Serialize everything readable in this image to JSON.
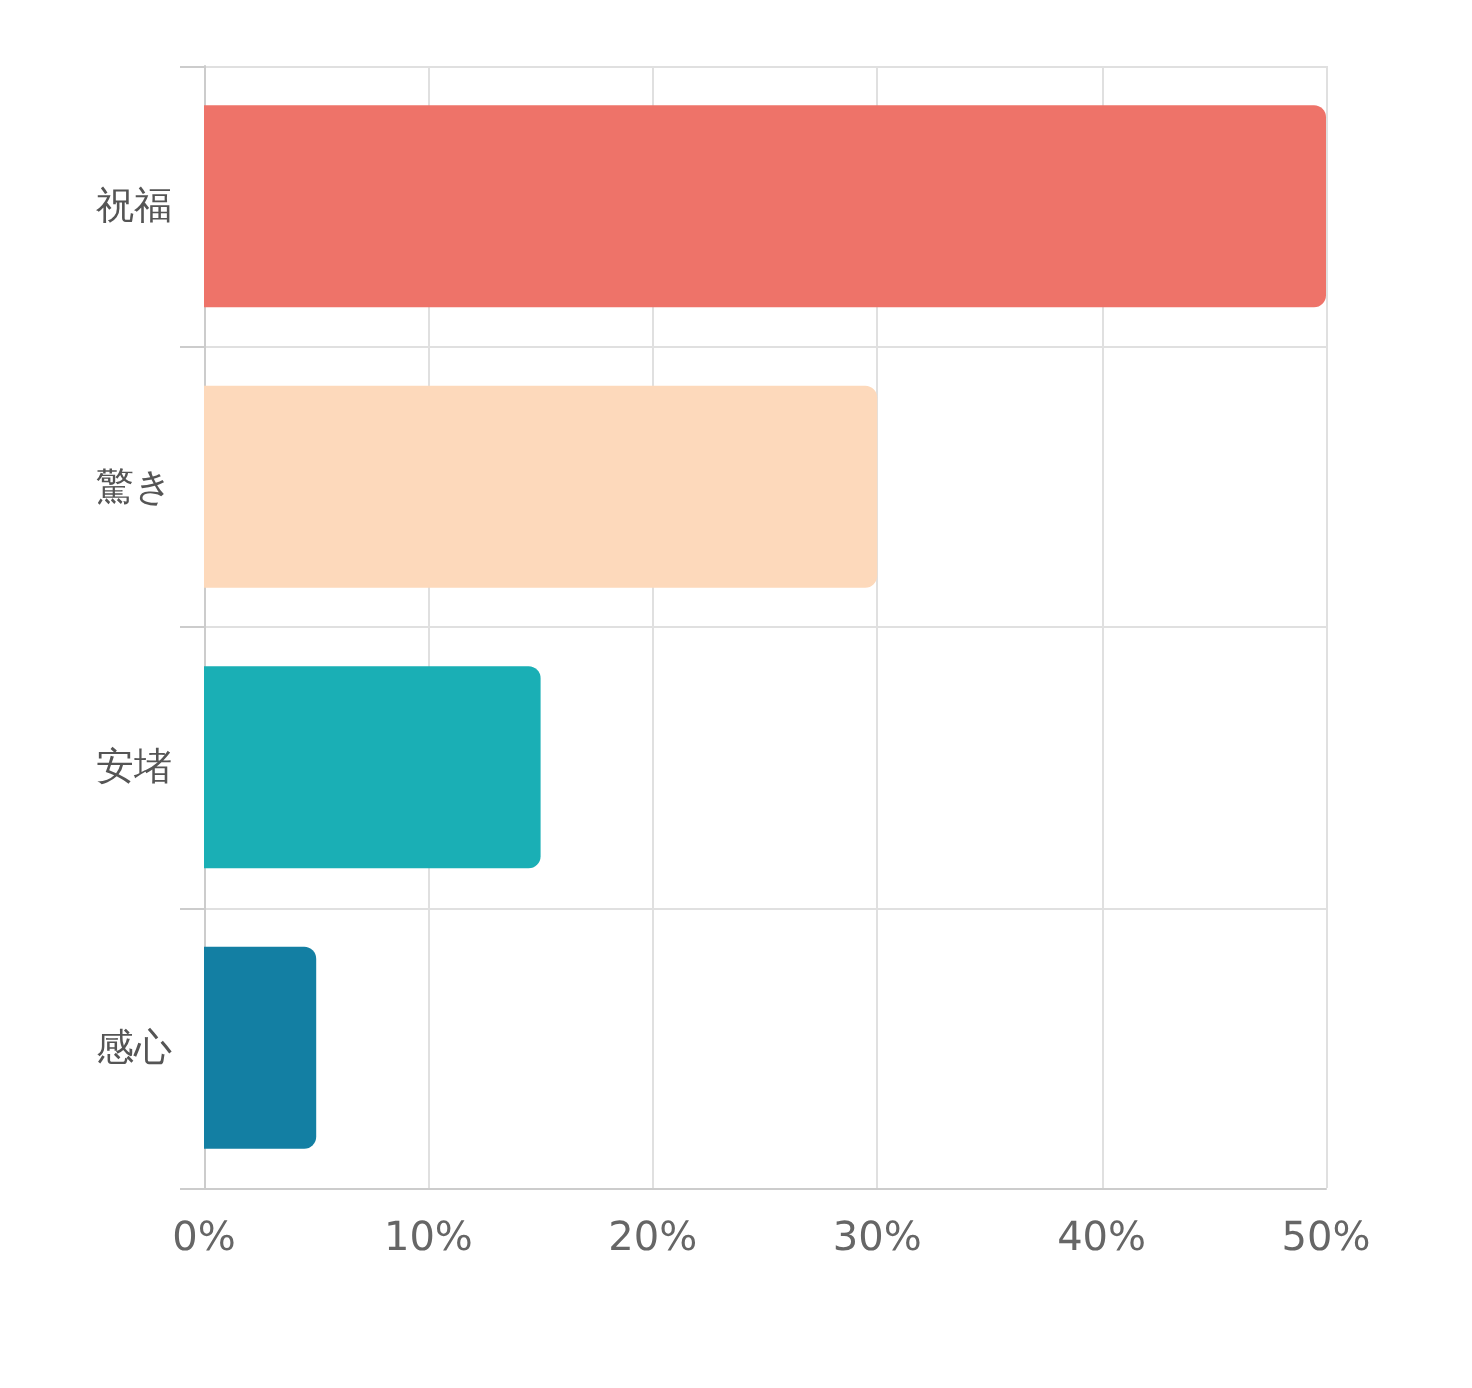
{
  "chart_data": {
    "type": "bar",
    "orientation": "horizontal",
    "categories": [
      "祝福",
      "驚き",
      "安堵",
      "感心"
    ],
    "values": [
      50,
      30,
      15,
      5
    ],
    "colors": [
      "#ee7369",
      "#fdd9bb",
      "#1aafb5",
      "#137fa3"
    ],
    "xlim": [
      0,
      50
    ],
    "xticks": [
      {
        "value": 0,
        "label": "0%"
      },
      {
        "value": 10,
        "label": "10%"
      },
      {
        "value": 20,
        "label": "20%"
      },
      {
        "value": 30,
        "label": "30%"
      },
      {
        "value": 40,
        "label": "40%"
      },
      {
        "value": 50,
        "label": "50%"
      }
    ],
    "grid": true
  }
}
